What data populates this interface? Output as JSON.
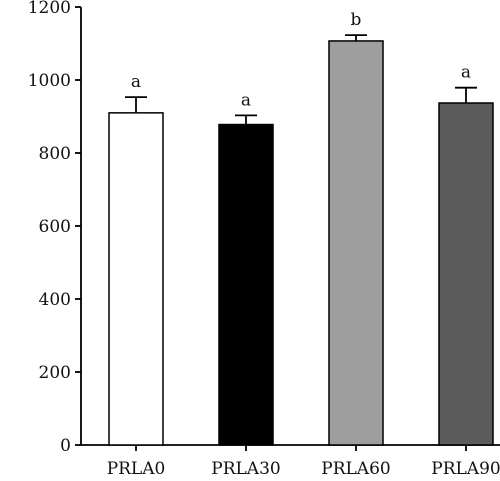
{
  "chart_data": {
    "type": "bar",
    "title": "",
    "xlabel": "",
    "ylabel": "",
    "categories": [
      "PRLA0",
      "PRLA30",
      "PRLA60",
      "PRLA90"
    ],
    "values": [
      910,
      878,
      1107,
      937
    ],
    "errors": [
      43,
      25,
      16,
      42
    ],
    "significance": [
      "a",
      "a",
      "b",
      "a"
    ],
    "bar_colors": [
      "#ffffff",
      "#000000",
      "#9e9e9e",
      "#5c5c5c"
    ],
    "ylim": [
      0,
      1200
    ],
    "yticks": [
      0,
      200,
      400,
      600,
      800,
      1000,
      1200
    ],
    "grid": false,
    "legend": "none"
  }
}
